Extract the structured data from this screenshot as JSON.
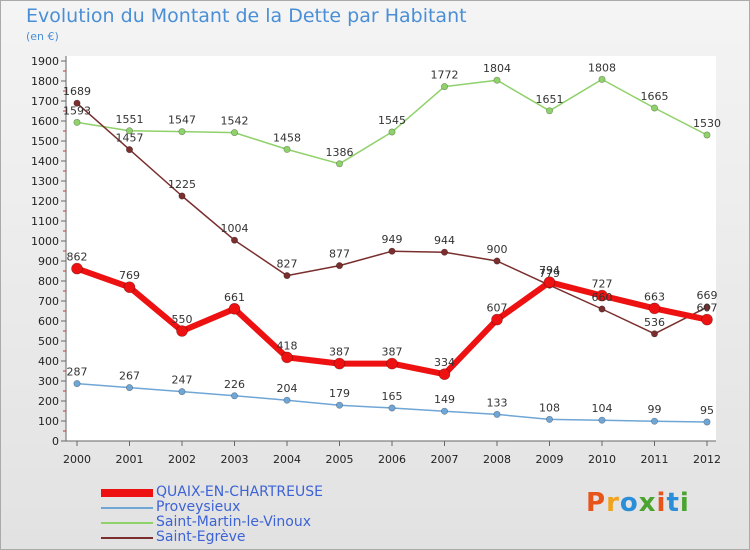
{
  "title": "Evolution du Montant de la Dette par Habitant",
  "unit": "(en €)",
  "logo": {
    "text": "Proxiti",
    "colors": [
      "#e8551b",
      "#f2a31c",
      "#2a8fd8",
      "#4aa42f",
      "#e8551b",
      "#2a8fd8",
      "#4aa42f"
    ]
  },
  "chart_data": {
    "type": "line",
    "title": "Evolution du Montant de la Dette par Habitant",
    "subtitle": "(en €)",
    "x": [
      "2000",
      "2001",
      "2002",
      "2003",
      "2004",
      "2005",
      "2006",
      "2007",
      "2008",
      "2009",
      "2010",
      "2011",
      "2012"
    ],
    "ylim": [
      0,
      1900
    ],
    "yticks": [
      0,
      100,
      200,
      300,
      400,
      500,
      600,
      700,
      800,
      900,
      1000,
      1100,
      1200,
      1300,
      1400,
      1500,
      1600,
      1700,
      1800,
      1900
    ],
    "grid": false,
    "legend_position": "bottom",
    "series": [
      {
        "name": "QUAIX-EN-CHARTREUSE",
        "color": "#ee1111",
        "values": [
          862,
          769,
          550,
          661,
          418,
          387,
          387,
          334,
          607,
          794,
          727,
          663,
          607
        ]
      },
      {
        "name": "Proveysieux",
        "color": "#6fa6d6",
        "values": [
          287,
          267,
          247,
          226,
          204,
          179,
          165,
          149,
          133,
          108,
          104,
          99,
          95
        ]
      },
      {
        "name": "Saint-Martin-le-Vinoux",
        "color": "#8fd16a",
        "values": [
          1593,
          1551,
          1547,
          1542,
          1458,
          1386,
          1545,
          1772,
          1804,
          1651,
          1808,
          1665,
          1530
        ]
      },
      {
        "name": "Saint-Egrève",
        "color": "#7a2e2e",
        "values": [
          1689,
          1457,
          1225,
          1004,
          827,
          877,
          949,
          944,
          900,
          779,
          660,
          536,
          669
        ]
      }
    ]
  }
}
